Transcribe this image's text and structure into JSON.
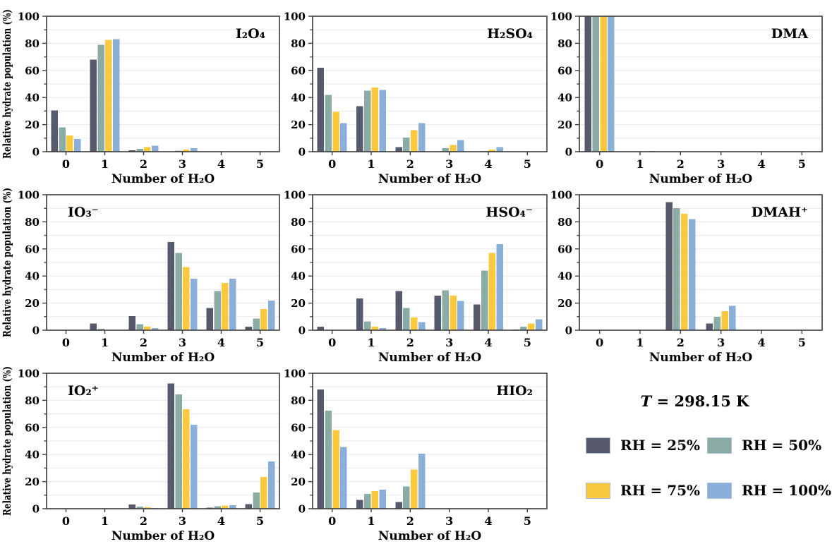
{
  "figure": {
    "ylabel": "Relative hydrate population (%)",
    "xlabel": "Number of H₂O",
    "axes": {
      "ylim": [
        0,
        100
      ],
      "ytick_step": 20,
      "yminor_step": 10,
      "grid": true,
      "grid_color": "#eaeaea",
      "frame_color": "#3c3c3c"
    },
    "legend": {
      "temp_symbol": "T",
      "temp_rest": " = 298.15 K",
      "items": [
        {
          "label": "RH = 25%",
          "color": "#575a6c"
        },
        {
          "label": "RH = 50%",
          "color": "#8aaca5"
        },
        {
          "label": "RH = 75%",
          "color": "#fac93e"
        },
        {
          "label": "RH = 100%",
          "color": "#8ab0d9"
        }
      ]
    }
  },
  "chart_data": [
    {
      "type": "bar",
      "title": "I₂O₄",
      "title_pos": "right",
      "categories": [
        0,
        1,
        2,
        3,
        4,
        5
      ],
      "xlabel": "Number of H₂O",
      "ylabel": "Relative hydrate population (%)",
      "ylabel_visible": true,
      "ylim": [
        0,
        100
      ],
      "series": [
        {
          "name": "RH = 25%",
          "values": [
            30.5,
            68,
            1,
            0.3,
            0,
            0
          ]
        },
        {
          "name": "RH = 50%",
          "values": [
            18,
            79,
            2,
            0.8,
            0,
            0
          ]
        },
        {
          "name": "RH = 75%",
          "values": [
            12,
            82.5,
            3.5,
            1.5,
            0,
            0
          ]
        },
        {
          "name": "RH = 100%",
          "values": [
            9.5,
            83,
            4.5,
            2.5,
            0,
            0
          ]
        }
      ]
    },
    {
      "type": "bar",
      "title": "H₂SO₄",
      "title_pos": "right",
      "categories": [
        0,
        1,
        2,
        3,
        4,
        5
      ],
      "xlabel": "Number of H₂O",
      "ylabel": "Relative hydrate population (%)",
      "ylabel_visible": false,
      "ylim": [
        0,
        100
      ],
      "series": [
        {
          "name": "RH = 25%",
          "values": [
            62,
            33.5,
            3.5,
            0.3,
            0.3,
            0
          ]
        },
        {
          "name": "RH = 50%",
          "values": [
            42,
            45,
            10.5,
            2.5,
            0.5,
            0
          ]
        },
        {
          "name": "RH = 75%",
          "values": [
            29.5,
            47.5,
            16,
            5,
            1.5,
            0
          ]
        },
        {
          "name": "RH = 100%",
          "values": [
            21,
            45.5,
            21,
            8.5,
            3.5,
            0
          ]
        }
      ]
    },
    {
      "type": "bar",
      "title": "DMA",
      "title_pos": "right",
      "categories": [
        0,
        1,
        2,
        3,
        4,
        5
      ],
      "xlabel": "Number of H₂O",
      "ylabel": "Relative hydrate population (%)",
      "ylabel_visible": false,
      "ylim": [
        0,
        100
      ],
      "series": [
        {
          "name": "RH = 25%",
          "values": [
            100,
            0,
            0,
            0,
            0,
            0
          ]
        },
        {
          "name": "RH = 50%",
          "values": [
            100,
            0.2,
            0,
            0,
            0,
            0
          ]
        },
        {
          "name": "RH = 75%",
          "values": [
            100,
            0.3,
            0,
            0,
            0,
            0
          ]
        },
        {
          "name": "RH = 100%",
          "values": [
            100,
            0.5,
            0,
            0,
            0,
            0
          ]
        }
      ]
    },
    {
      "type": "bar",
      "title": "IO₃⁻",
      "title_pos": "left",
      "categories": [
        0,
        1,
        2,
        3,
        4,
        5
      ],
      "xlabel": "Number of H₂O",
      "ylabel": "Relative hydrate population (%)",
      "ylabel_visible": true,
      "ylim": [
        0,
        100
      ],
      "series": [
        {
          "name": "RH = 25%",
          "values": [
            0,
            5,
            10.5,
            65,
            16.5,
            2.5
          ]
        },
        {
          "name": "RH = 50%",
          "values": [
            0,
            1,
            4.5,
            57,
            29,
            8.5
          ]
        },
        {
          "name": "RH = 75%",
          "values": [
            0,
            0.3,
            2.5,
            46.5,
            35,
            15.5
          ]
        },
        {
          "name": "RH = 100%",
          "values": [
            0,
            0.3,
            1.5,
            38,
            38,
            22
          ]
        }
      ]
    },
    {
      "type": "bar",
      "title": "HSO₄⁻",
      "title_pos": "right",
      "categories": [
        0,
        1,
        2,
        3,
        4,
        5
      ],
      "xlabel": "Number of H₂O",
      "ylabel": "Relative hydrate population (%)",
      "ylabel_visible": false,
      "ylim": [
        0,
        100
      ],
      "series": [
        {
          "name": "RH = 25%",
          "values": [
            2.5,
            23.5,
            29,
            25.5,
            19,
            0.5
          ]
        },
        {
          "name": "RH = 50%",
          "values": [
            0.3,
            6.5,
            16.5,
            29.5,
            44,
            2.5
          ]
        },
        {
          "name": "RH = 75%",
          "values": [
            0,
            2.5,
            9.5,
            25.5,
            57,
            5
          ]
        },
        {
          "name": "RH = 100%",
          "values": [
            0,
            1.5,
            6,
            21.5,
            63.5,
            8
          ]
        }
      ]
    },
    {
      "type": "bar",
      "title": "DMAH⁺",
      "title_pos": "right",
      "categories": [
        0,
        1,
        2,
        3,
        4,
        5
      ],
      "xlabel": "Number of H₂O",
      "ylabel": "Relative hydrate population (%)",
      "ylabel_visible": false,
      "ylim": [
        0,
        100
      ],
      "series": [
        {
          "name": "RH = 25%",
          "values": [
            0,
            0,
            94.5,
            5,
            0,
            0
          ]
        },
        {
          "name": "RH = 50%",
          "values": [
            0,
            0,
            90,
            10,
            0,
            0
          ]
        },
        {
          "name": "RH = 75%",
          "values": [
            0,
            0,
            86,
            14,
            0,
            0
          ]
        },
        {
          "name": "RH = 100%",
          "values": [
            0,
            0,
            82,
            18,
            0,
            0
          ]
        }
      ]
    },
    {
      "type": "bar",
      "title": "IO₂⁺",
      "title_pos": "left",
      "categories": [
        0,
        1,
        2,
        3,
        4,
        5
      ],
      "xlabel": "Number of H₂O",
      "ylabel": "Relative hydrate population (%)",
      "ylabel_visible": true,
      "ylim": [
        0,
        100
      ],
      "series": [
        {
          "name": "RH = 25%",
          "values": [
            0,
            0,
            3,
            92.5,
            0.8,
            3.5
          ]
        },
        {
          "name": "RH = 50%",
          "values": [
            0,
            0,
            1.5,
            84.5,
            1.8,
            12
          ]
        },
        {
          "name": "RH = 75%",
          "values": [
            0,
            0,
            1,
            73.5,
            2.3,
            23.5
          ]
        },
        {
          "name": "RH = 100%",
          "values": [
            0,
            0,
            0.5,
            62,
            2.5,
            35
          ]
        }
      ]
    },
    {
      "type": "bar",
      "title": "HIO₂",
      "title_pos": "right",
      "categories": [
        0,
        1,
        2,
        3,
        4,
        5
      ],
      "xlabel": "Number of H₂O",
      "ylabel": "Relative hydrate population (%)",
      "ylabel_visible": false,
      "ylim": [
        0,
        100
      ],
      "series": [
        {
          "name": "RH = 25%",
          "values": [
            88,
            6.5,
            5,
            0,
            0,
            0
          ]
        },
        {
          "name": "RH = 50%",
          "values": [
            72.5,
            11,
            16.5,
            0,
            0,
            0
          ]
        },
        {
          "name": "RH = 75%",
          "values": [
            58,
            13,
            29,
            0,
            0,
            0
          ]
        },
        {
          "name": "RH = 100%",
          "values": [
            45.5,
            14,
            40.5,
            0,
            0,
            0
          ]
        }
      ]
    }
  ]
}
